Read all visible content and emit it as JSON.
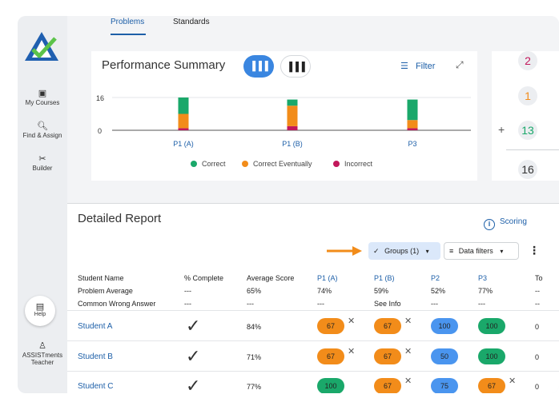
{
  "sidebar": {
    "items": [
      {
        "label": "My Courses",
        "icon": "courses-icon"
      },
      {
        "label": "Find & Assign",
        "icon": "search-icon"
      },
      {
        "label": "Builder",
        "icon": "builder-icon"
      }
    ],
    "help_label": "Help",
    "user_line1": "ASSISTments",
    "user_line2": "Teacher"
  },
  "tabs": {
    "problems": "Problems",
    "standards": "Standards"
  },
  "summary": {
    "title": "Performance Summary",
    "filter_label": "Filter",
    "legend": {
      "correct": "Correct",
      "eventually": "Correct Eventually",
      "incorrect": "Incorrect"
    }
  },
  "side_counts": {
    "c1": "2",
    "c2": "1",
    "c3": "13",
    "c4": "16"
  },
  "chart_data": {
    "type": "bar",
    "stacked": true,
    "categories": [
      "P1 (A)",
      "P1 (B)",
      "P3"
    ],
    "series": [
      {
        "name": "Correct",
        "color": "#1aa86a",
        "values": [
          8,
          3,
          10
        ]
      },
      {
        "name": "Correct Eventually",
        "color": "#f28c1a",
        "values": [
          7,
          10,
          4
        ]
      },
      {
        "name": "Incorrect",
        "color": "#c2185b",
        "values": [
          1,
          2,
          1
        ]
      }
    ],
    "yticks": [
      "16",
      "0"
    ],
    "ylim": [
      0,
      16
    ]
  },
  "report": {
    "title": "Detailed Report",
    "scoring_label": "Scoring",
    "groups_label": "Groups (1)",
    "data_filters_label": "Data filters",
    "headers": {
      "student": "Student Name",
      "complete": "% Complete",
      "avg": "Average Score",
      "p1a": "P1 (A)",
      "p1b": "P1 (B)",
      "p2": "P2",
      "p3": "P3",
      "total": "To"
    },
    "problem_avg": {
      "label": "Problem Average",
      "complete": "---",
      "avg": "65%",
      "p1a": "74%",
      "p1b": "59%",
      "p2": "52%",
      "p3": "77%",
      "total": "--"
    },
    "wrong_answer": {
      "label": "Common Wrong Answer",
      "complete": "---",
      "avg": "---",
      "p1a": "---",
      "p1b": "See Info",
      "p2": "---",
      "p3": "---",
      "total": "--"
    },
    "students": [
      {
        "name": "Student A",
        "avg": "84%",
        "p1a": "67",
        "p1b": "67",
        "p2": "100",
        "p3": "100",
        "total": "0"
      },
      {
        "name": "Student B",
        "avg": "71%",
        "p1a": "67",
        "p1b": "67",
        "p2": "50",
        "p3": "100",
        "total": "0"
      },
      {
        "name": "Student C",
        "avg": "77%",
        "p1a": "100",
        "p1b": "67",
        "p2": "75",
        "p3": "67",
        "total": "0"
      }
    ]
  }
}
